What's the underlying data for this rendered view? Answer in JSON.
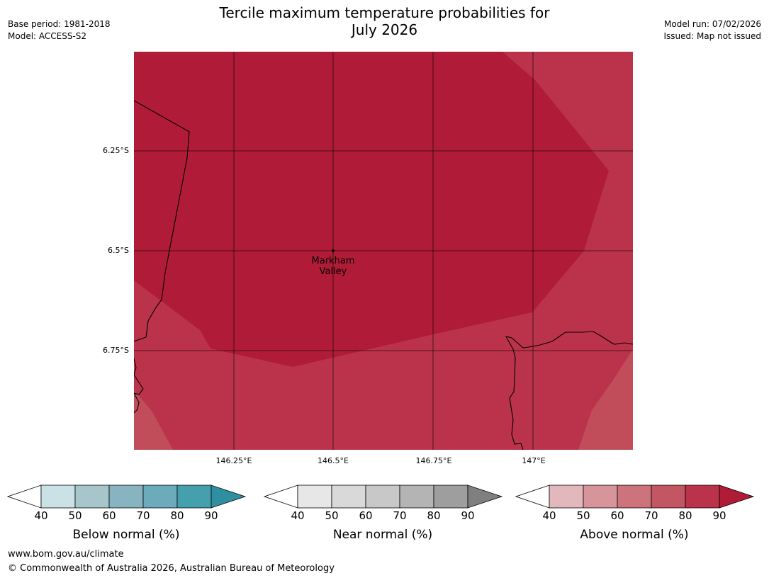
{
  "header": {
    "title_line1": "Tercile maximum temperature probabilities for",
    "title_line2": "July 2026",
    "base_period": "Base period: 1981-2018",
    "model": "Model: ACCESS-S2",
    "model_run": "Model run: 07/02/2026",
    "issued": "Issued: Map not issued"
  },
  "map": {
    "lat_labels": [
      "6.25°S",
      "6.5°S",
      "6.75°S"
    ],
    "lon_labels": [
      "146.25°E",
      "146.5°E",
      "146.75°E",
      "147°E"
    ],
    "place_name_line1": "Markham",
    "place_name_line2": "Valley",
    "colors": {
      "band_90": "#b01c37",
      "band_80": "#bb334a",
      "band_70": "#c04d59"
    }
  },
  "legends": [
    {
      "title": "Below normal (%)",
      "ticks": [
        "40",
        "50",
        "60",
        "70",
        "80",
        "90"
      ],
      "colors": [
        "#cae1e6",
        "#a7c6cc",
        "#88b4c1",
        "#6cabbb",
        "#45a0ae",
        "#2f8fa0"
      ]
    },
    {
      "title": "Near normal (%)",
      "ticks": [
        "40",
        "50",
        "60",
        "70",
        "80",
        "90"
      ],
      "colors": [
        "#e7e7e7",
        "#d9d9d9",
        "#c8c8c8",
        "#b4b4b4",
        "#9e9e9e",
        "#7f7f7f"
      ]
    },
    {
      "title": "Above normal (%)",
      "ticks": [
        "40",
        "50",
        "60",
        "70",
        "80",
        "90"
      ],
      "colors": [
        "#e2b8bd",
        "#d6949b",
        "#cc737c",
        "#c25662",
        "#bb334a",
        "#b01c37"
      ]
    }
  ],
  "footer": {
    "website": "www.bom.gov.au/climate",
    "copyright": "© Commonwealth of Australia 2026, Australian Bureau of Meteorology"
  }
}
